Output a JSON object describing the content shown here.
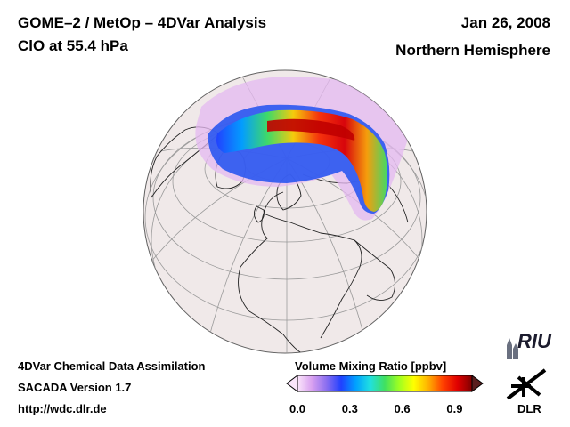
{
  "header": {
    "title": "GOME–2 / MetOp – 4DVar Analysis",
    "species": "ClO at 55.4 hPa",
    "date": "Jan 26, 2008",
    "region": "Northern Hemisphere"
  },
  "map": {
    "projection": "orthographic",
    "hemisphere": "north",
    "ocean_color": "#f0e9e9",
    "field": "ClO volume mixing ratio",
    "max_region": "over northern Russia / Siberia",
    "max_value_ppbv": 0.9
  },
  "colorbar": {
    "title": "Volume Mixing Ratio [ppbv]",
    "min": 0.0,
    "max": 1.0,
    "ticks": [
      "0.0",
      "0.3",
      "0.6",
      "0.9"
    ],
    "tick_values": [
      0.0,
      0.3,
      0.6,
      0.9
    ],
    "stops": [
      "#fbe6fb",
      "#d8a0f0",
      "#8a6ef0",
      "#2040ff",
      "#00a0ff",
      "#20e0e0",
      "#40e060",
      "#a0ff20",
      "#ffff00",
      "#ffb000",
      "#ff4000",
      "#e00000",
      "#800000"
    ]
  },
  "footer": {
    "line1": "4DVar Chemical Data Assimilation",
    "line2": "SACADA Version 1.7",
    "line3": "http://wdc.dlr.de"
  },
  "logos": {
    "riu": "RIU",
    "dlr": "DLR"
  }
}
